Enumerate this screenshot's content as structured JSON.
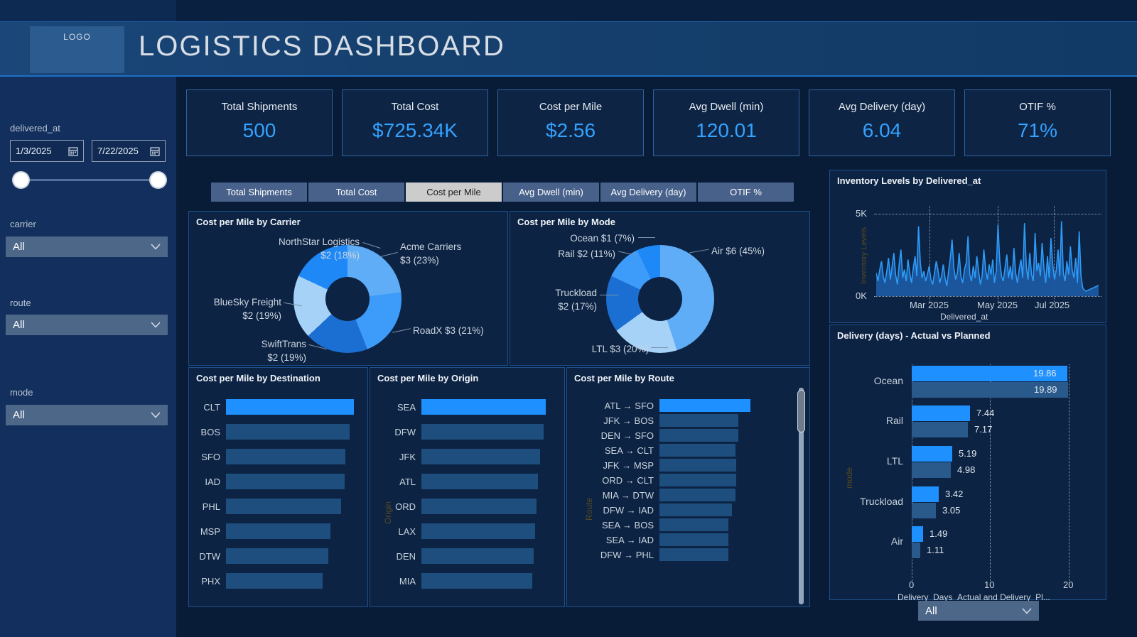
{
  "header": {
    "logo": "LOGO",
    "title": "LOGISTICS DASHBOARD"
  },
  "filters": {
    "date": {
      "label": "delivered_at",
      "start": "1/3/2025",
      "end": "7/22/2025"
    },
    "carrier": {
      "label": "carrier",
      "value": "All"
    },
    "route": {
      "label": "route",
      "value": "All"
    },
    "mode": {
      "label": "mode",
      "value": "All"
    }
  },
  "kpis": [
    {
      "label": "Total Shipments",
      "value": "500"
    },
    {
      "label": "Total Cost",
      "value": "$725.34K"
    },
    {
      "label": "Cost per Mile",
      "value": "$2.56"
    },
    {
      "label": "Avg Dwell (min)",
      "value": "120.01"
    },
    {
      "label": "Avg Delivery (day)",
      "value": "6.04"
    },
    {
      "label": "OTIF %",
      "value": "71%"
    }
  ],
  "tabs": {
    "items": [
      "Total Shipments",
      "Total Cost",
      "Cost per Mile",
      "Avg Dwell (min)",
      "Avg Delivery (day)",
      "OTIF %"
    ],
    "active_index": 2
  },
  "bottom_filter": {
    "value": "All"
  },
  "colors": {
    "accent": "#35a2ff",
    "bar_highlight": "#1e90ff",
    "bar_normal": "#1d4e7e",
    "planned_bar": "#2a5a8c",
    "line": "#2e9bf7",
    "area_fill": "#1c59a0"
  },
  "chart_data": [
    {
      "type": "pie",
      "title": "Cost per Mile by Carrier",
      "slices": [
        {
          "name": "Acme Carriers",
          "value": 3,
          "percent": 23,
          "color": "#5fadf6"
        },
        {
          "name": "RoadX",
          "value": 3,
          "percent": 21,
          "color": "#3d9bfa"
        },
        {
          "name": "SwiftTrans",
          "value": 2,
          "percent": 19,
          "color": "#1b6ed2"
        },
        {
          "name": "BlueSky Freight",
          "value": 2,
          "percent": 19,
          "color": "#a6d2f8"
        },
        {
          "name": "NorthStar Logistics",
          "value": 2,
          "percent": 18,
          "color": "#1e88f7"
        }
      ],
      "callouts": [
        {
          "line1": "NorthStar Logistics",
          "line2": "$2 (18%)"
        },
        {
          "line1": "Acme Carriers",
          "line2": "$3 (23%)"
        },
        {
          "line1": "BlueSky Freight",
          "line2": "$2 (19%)"
        },
        {
          "line1": "RoadX $3 (21%)",
          "line2": ""
        },
        {
          "line1": "SwiftTrans",
          "line2": "$2 (19%)"
        }
      ]
    },
    {
      "type": "pie",
      "title": "Cost per Mile by Mode",
      "slices": [
        {
          "name": "Air",
          "value": 6,
          "percent": 45,
          "color": "#5fadf6"
        },
        {
          "name": "LTL",
          "value": 3,
          "percent": 20,
          "color": "#a6d2f8"
        },
        {
          "name": "Truckload",
          "value": 2,
          "percent": 17,
          "color": "#1b6ed2"
        },
        {
          "name": "Rail",
          "value": 2,
          "percent": 11,
          "color": "#3d9bfa"
        },
        {
          "name": "Ocean",
          "value": 1,
          "percent": 7,
          "color": "#1e88f7"
        }
      ],
      "callouts": [
        {
          "line1": "Ocean $1 (7%)",
          "line2": ""
        },
        {
          "line1": "Rail $2 (11%)",
          "line2": ""
        },
        {
          "line1": "Air $6 (45%)",
          "line2": ""
        },
        {
          "line1": "Truckload",
          "line2": "$2 (17%)"
        },
        {
          "line1": "LTL $3 (20%)",
          "line2": ""
        }
      ]
    },
    {
      "type": "bar",
      "title": "Cost per Mile by Destination",
      "orientation": "horizontal",
      "categories": [
        "CLT",
        "BOS",
        "SFO",
        "IAD",
        "PHL",
        "MSP",
        "DTW",
        "PHX"
      ],
      "values_relative": [
        1.0,
        0.965,
        0.935,
        0.925,
        0.9,
        0.815,
        0.8,
        0.755
      ],
      "highlight_index": 0
    },
    {
      "type": "bar",
      "title": "Cost per Mile by Origin",
      "orientation": "horizontal",
      "ylabel": "Origin",
      "categories": [
        "SEA",
        "DFW",
        "JFK",
        "ATL",
        "ORD",
        "LAX",
        "DEN",
        "MIA"
      ],
      "values_relative": [
        1.0,
        0.98,
        0.955,
        0.935,
        0.925,
        0.915,
        0.905,
        0.89
      ],
      "highlight_index": 0
    },
    {
      "type": "bar",
      "title": "Cost per Mile by Route",
      "orientation": "horizontal",
      "ylabel": "Route",
      "categories": [
        "ATL → SFO",
        "JFK → BOS",
        "DEN → SFO",
        "SEA → CLT",
        "JFK → MSP",
        "ORD → CLT",
        "MIA → DTW",
        "DFW → IAD",
        "SEA → BOS",
        "SEA → IAD",
        "DFW → PHL"
      ],
      "values_relative": [
        1.0,
        0.87,
        0.87,
        0.835,
        0.845,
        0.845,
        0.835,
        0.8,
        0.76,
        0.755,
        0.76
      ],
      "highlight_index": 0
    },
    {
      "type": "line",
      "title": "Inventory Levels by Delivered_at",
      "xlabel": "Delivered_at",
      "ylabel": "Inventory Levels",
      "y_ticks": [
        "5K",
        "0K"
      ],
      "x_ticks": [
        "Mar 2025",
        "May 2025",
        "Jul 2025"
      ],
      "ylim_k": [
        0,
        5.3
      ],
      "values_k": [
        1.4,
        0.9,
        1.6,
        2.1,
        1.2,
        0.8,
        1.5,
        2.3,
        1.0,
        1.8,
        2.6,
        1.3,
        0.7,
        1.9,
        2.8,
        1.1,
        1.6,
        0.9,
        2.2,
        1.4,
        0.8,
        1.7,
        2.4,
        1.2,
        4.2,
        2.0,
        1.1,
        1.5,
        0.9,
        1.3,
        1.8,
        1.0,
        0.7,
        1.4,
        2.1,
        1.6,
        0.8,
        1.2,
        1.9,
        1.1,
        0.6,
        1.5,
        2.3,
        3.4,
        1.7,
        1.0,
        1.4,
        2.6,
        1.2,
        0.8,
        1.6,
        2.0,
        3.6,
        1.3,
        0.9,
        1.8,
        1.1,
        2.4,
        1.5,
        0.7,
        1.2,
        2.8,
        1.6,
        1.0,
        1.9,
        1.3,
        2.2,
        0.8,
        1.5,
        4.3,
        2.1,
        1.2,
        0.9,
        1.7,
        2.5,
        1.1,
        1.8,
        1.0,
        2.9,
        1.4,
        0.8,
        1.6,
        2.2,
        1.1,
        4.4,
        1.8,
        1.0,
        2.6,
        1.3,
        0.9,
        3.8,
        1.5,
        2.0,
        1.2,
        3.2,
        1.7,
        0.8,
        2.4,
        1.1,
        3.5,
        1.9,
        1.0,
        1.6,
        2.8,
        1.2,
        4.5,
        1.4,
        0.9,
        2.1,
        1.3,
        3.0,
        1.6,
        1.1,
        2.3,
        0.8,
        3.9,
        1.2,
        0.5,
        0.35,
        0.3,
        0.35,
        0.4,
        0.45,
        0.5,
        0.55,
        0.6,
        0.65
      ]
    },
    {
      "type": "bar",
      "title": "Delivery (days) - Actual vs Planned",
      "orientation": "horizontal-grouped",
      "ylabel": "mode",
      "xlabel": "Delivery_Days_Actual and Delivery_Pl...",
      "x_ticks": [
        "0",
        "10",
        "20"
      ],
      "xlim": [
        0,
        23
      ],
      "categories": [
        "Ocean",
        "Rail",
        "LTL",
        "Truckload",
        "Air"
      ],
      "series": [
        {
          "name": "Actual",
          "values": [
            19.86,
            7.44,
            5.19,
            3.42,
            1.49
          ]
        },
        {
          "name": "Planned",
          "values": [
            19.89,
            7.17,
            4.98,
            3.05,
            1.11
          ]
        }
      ]
    }
  ]
}
